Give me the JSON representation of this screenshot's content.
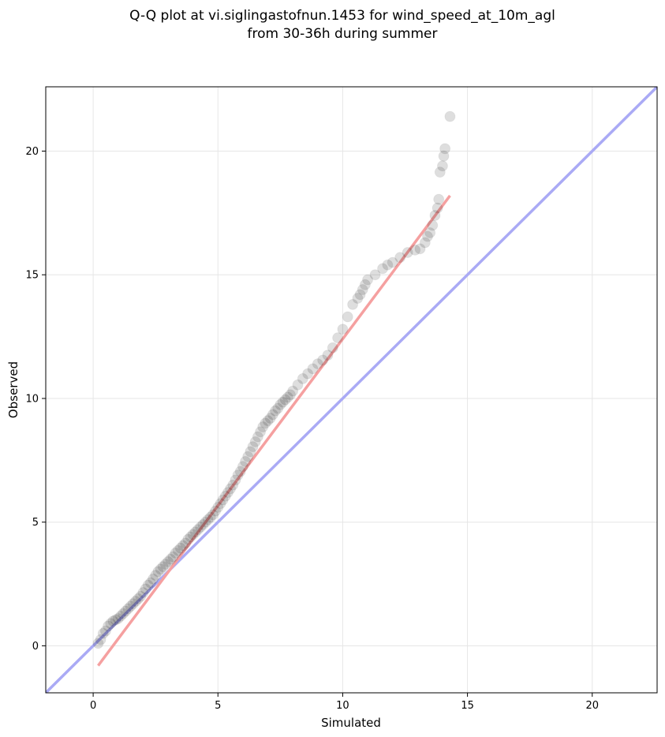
{
  "chart_data": {
    "type": "scatter",
    "title_line1": "Q-Q plot at vi.siglingastofnun.1453 for wind_speed_at_10m_agl",
    "title_line2": "from 30-36h during summer",
    "xlabel": "Simulated",
    "ylabel": "Observed",
    "xlim": [
      -1.9,
      22.6
    ],
    "ylim": [
      -1.9,
      22.6
    ],
    "xticks": [
      0,
      5,
      10,
      15,
      20
    ],
    "yticks": [
      0,
      5,
      10,
      15,
      20
    ],
    "xtick_labels": [
      "0",
      "5",
      "10",
      "15",
      "20"
    ],
    "ytick_labels": [
      "0",
      "5",
      "10",
      "15",
      "20"
    ],
    "grid": true,
    "reference_line": {
      "color": "#aaaaf5",
      "from": [
        -1.9,
        -1.9
      ],
      "to": [
        22.6,
        22.6
      ]
    },
    "fit_line": {
      "color": "#f5a0a0",
      "from": [
        0.2,
        -0.8
      ],
      "to": [
        14.3,
        18.2
      ]
    },
    "points": {
      "color": "#000000",
      "x": [
        0.2,
        0.3,
        0.4,
        0.5,
        0.6,
        0.7,
        0.8,
        0.9,
        1.0,
        1.1,
        1.2,
        1.3,
        1.4,
        1.5,
        1.6,
        1.7,
        1.8,
        1.9,
        2.0,
        2.1,
        2.2,
        2.3,
        2.4,
        2.5,
        2.6,
        2.7,
        2.8,
        2.9,
        3.0,
        3.1,
        3.2,
        3.3,
        3.4,
        3.5,
        3.6,
        3.7,
        3.8,
        3.9,
        4.0,
        4.1,
        4.2,
        4.3,
        4.4,
        4.5,
        4.6,
        4.7,
        4.8,
        4.9,
        5.0,
        5.1,
        5.2,
        5.3,
        5.4,
        5.5,
        5.6,
        5.7,
        5.8,
        5.9,
        6.0,
        6.1,
        6.2,
        6.3,
        6.4,
        6.5,
        6.6,
        6.7,
        6.8,
        6.9,
        7.0,
        7.1,
        7.2,
        7.3,
        7.4,
        7.5,
        7.6,
        7.7,
        7.8,
        7.9,
        8.0,
        8.2,
        8.4,
        8.6,
        8.8,
        9.0,
        9.2,
        9.4,
        9.6,
        9.8,
        10.0,
        10.2,
        10.4,
        10.6,
        10.7,
        10.8,
        10.9,
        11.0,
        11.3,
        11.6,
        11.8,
        12.0,
        12.3,
        12.6,
        12.9,
        13.1,
        13.3,
        13.4,
        13.5,
        13.6,
        13.7,
        13.8,
        13.85,
        13.9,
        14.0,
        14.05,
        14.1,
        14.3
      ],
      "y": [
        0.1,
        0.25,
        0.5,
        0.6,
        0.8,
        0.9,
        1.0,
        1.05,
        1.1,
        1.2,
        1.3,
        1.4,
        1.5,
        1.6,
        1.7,
        1.8,
        1.9,
        2.0,
        2.15,
        2.3,
        2.45,
        2.55,
        2.7,
        2.85,
        3.0,
        3.1,
        3.2,
        3.3,
        3.4,
        3.5,
        3.6,
        3.75,
        3.85,
        3.95,
        4.05,
        4.15,
        4.3,
        4.4,
        4.5,
        4.6,
        4.7,
        4.8,
        4.9,
        5.0,
        5.1,
        5.2,
        5.3,
        5.45,
        5.6,
        5.75,
        5.9,
        6.05,
        6.2,
        6.35,
        6.5,
        6.7,
        6.9,
        7.05,
        7.25,
        7.45,
        7.65,
        7.85,
        8.05,
        8.25,
        8.45,
        8.65,
        8.85,
        9.0,
        9.1,
        9.2,
        9.35,
        9.5,
        9.6,
        9.75,
        9.85,
        9.95,
        10.05,
        10.15,
        10.3,
        10.55,
        10.8,
        11.0,
        11.2,
        11.4,
        11.55,
        11.75,
        12.05,
        12.45,
        12.8,
        13.3,
        13.8,
        14.05,
        14.2,
        14.4,
        14.6,
        14.8,
        15.0,
        15.25,
        15.4,
        15.5,
        15.7,
        15.9,
        16.0,
        16.05,
        16.3,
        16.55,
        16.7,
        17.0,
        17.4,
        17.7,
        18.05,
        19.15,
        19.4,
        19.8,
        20.1,
        21.4
      ]
    }
  }
}
